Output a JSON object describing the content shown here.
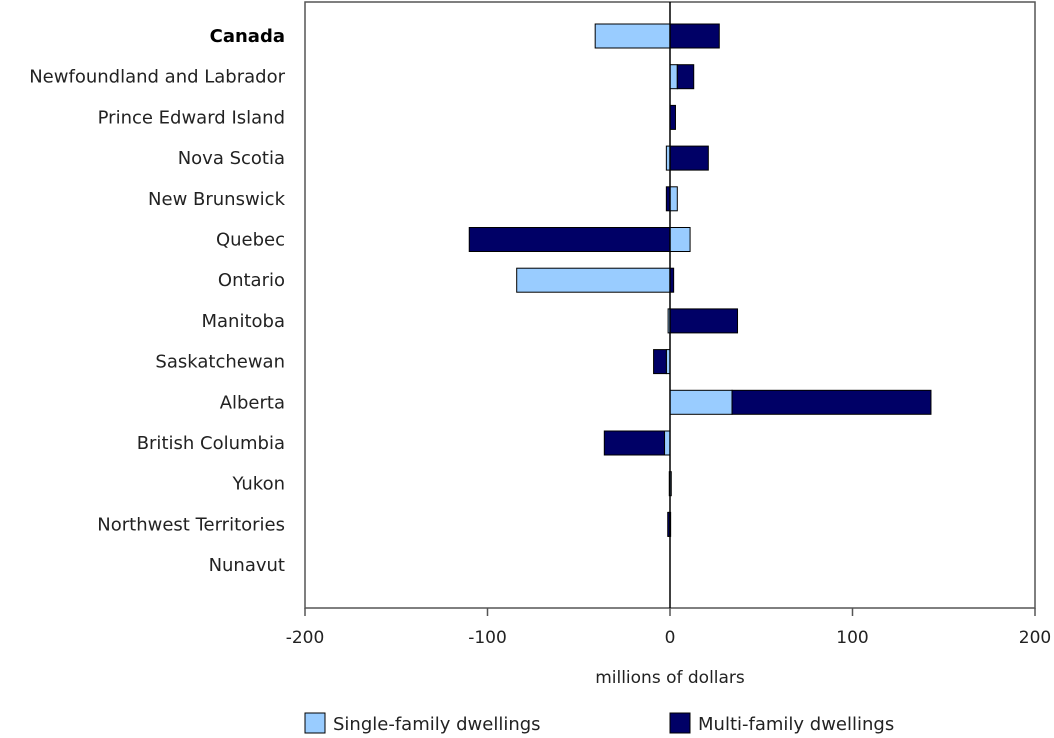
{
  "chart_data": {
    "type": "bar",
    "orientation": "horizontal",
    "stacked": "diverging",
    "categories": [
      "Canada",
      "Newfoundland and Labrador",
      "Prince Edward Island",
      "Nova Scotia",
      "New Brunswick",
      "Quebec",
      "Ontario",
      "Manitoba",
      "Saskatchewan",
      "Alberta",
      "British Columbia",
      "Yukon",
      "Northwest Territories",
      "Nunavut"
    ],
    "bold_categories": [
      "Canada"
    ],
    "series": [
      {
        "name": "Single-family dwellings",
        "color": "#99ccff",
        "values": [
          -41,
          4,
          0,
          -2,
          4,
          11,
          -84,
          -1,
          -2,
          34,
          -3,
          0.3,
          -0.4,
          0
        ]
      },
      {
        "name": "Multi-family dwellings",
        "color": "#000066",
        "values": [
          27,
          9,
          3,
          21,
          -2,
          -110,
          2,
          37,
          -7,
          109,
          -33,
          0,
          -0.6,
          0
        ]
      }
    ],
    "xlabel": "millions of dollars",
    "xlim": [
      -200,
      200
    ],
    "xticks": [
      -200,
      -100,
      0,
      100,
      200
    ],
    "xtick_labels": [
      "-200",
      "-100",
      "0",
      "100",
      "200"
    ],
    "grid": false,
    "legend_position": "bottom"
  }
}
